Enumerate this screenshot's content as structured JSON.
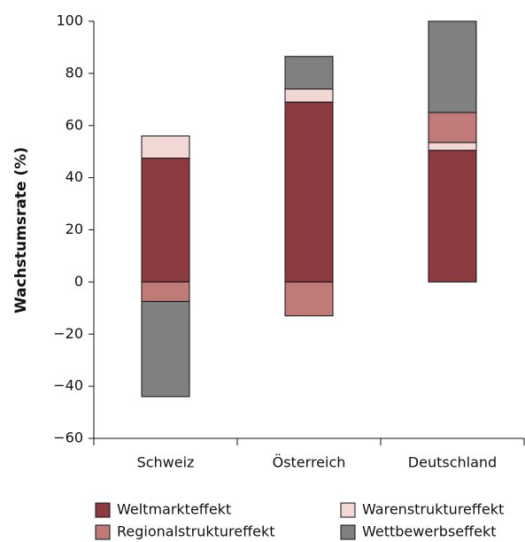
{
  "chart_data": {
    "type": "stacked_bar",
    "y_label": "Wachstumsrate (%)",
    "categories": [
      "Schweiz",
      "Österreich",
      "Deutschland"
    ],
    "series": [
      {
        "name": "Weltmarkteffekt",
        "color": "#8e3a41",
        "values": [
          47.5,
          69,
          50.5
        ]
      },
      {
        "name": "Warenstruktureffekt",
        "color": "#f2d8d5",
        "values": [
          8.5,
          5,
          3
        ]
      },
      {
        "name": "Regionalstruktureffekt",
        "color": "#c07a78",
        "values": [
          -7.5,
          -13,
          11.5
        ]
      },
      {
        "name": "Wettbewerbseffekt",
        "color": "#808080",
        "values": [
          -36.5,
          12.5,
          35
        ]
      }
    ],
    "ylim": [
      -60,
      100
    ],
    "yticks": [
      {
        "value": -60,
        "label": "−60"
      },
      {
        "value": -40,
        "label": "−40"
      },
      {
        "value": -20,
        "label": "−20"
      },
      0,
      20,
      40,
      60,
      80,
      100
    ]
  }
}
